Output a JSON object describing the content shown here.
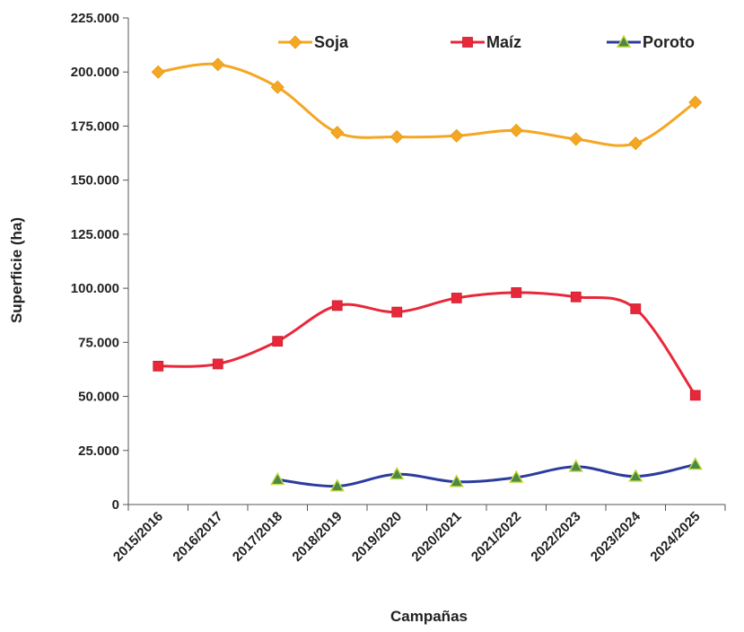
{
  "chart_data": {
    "type": "line",
    "title": "",
    "xlabel": "Campañas",
    "ylabel": "Superficie (ha)",
    "ylim": [
      0,
      225000
    ],
    "yticks": [
      0,
      25000,
      50000,
      75000,
      100000,
      125000,
      150000,
      175000,
      200000,
      225000
    ],
    "ytick_labels": [
      "0",
      "25.000",
      "50.000",
      "75.000",
      "100.000",
      "125.000",
      "150.000",
      "175.000",
      "200.000",
      "225.000"
    ],
    "categories": [
      "2015/2016",
      "2016/2017",
      "2017/2018",
      "2018/2019",
      "2019/2020",
      "2020/2021",
      "2021/2022",
      "2022/2023",
      "2023/2024",
      "2024/2025"
    ],
    "grid": false,
    "legend_position": "top",
    "series": [
      {
        "name": "Soja",
        "color": "#F5A623",
        "marker": "diamond",
        "values": [
          200000,
          203500,
          193000,
          172000,
          170000,
          170500,
          173000,
          169000,
          167000,
          186000
        ]
      },
      {
        "name": "Maíz",
        "color": "#E8283A",
        "marker": "square",
        "values": [
          64000,
          65000,
          75500,
          92000,
          89000,
          95500,
          98000,
          96000,
          90500,
          50500
        ]
      },
      {
        "name": "Poroto",
        "color": "#2B3C9E",
        "marker": "triangle",
        "values": [
          null,
          null,
          11500,
          8500,
          14000,
          10500,
          12500,
          17500,
          13000,
          18500
        ]
      }
    ]
  }
}
